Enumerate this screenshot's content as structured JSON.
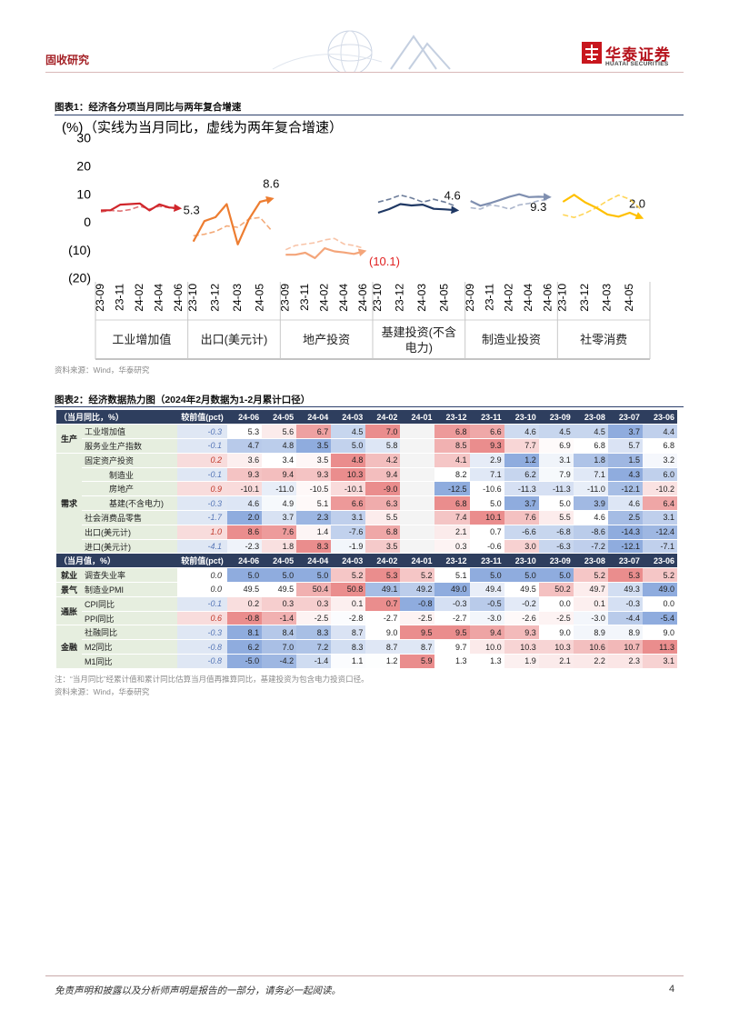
{
  "header": {
    "section": "固收研究",
    "logo_cn": "华泰证券",
    "logo_en": "HUATAI SECURITIES"
  },
  "figure1": {
    "title": "图表1：经济各分项当月同比与两年复合增速",
    "source": "资料来源：Wind，华泰研究"
  },
  "chart_data": {
    "type": "line",
    "y_label": "(%)",
    "subtitle": "（实线为当月同比，虚线为两年复合增速）",
    "ylim": [
      -20,
      30
    ],
    "yticks": [
      30,
      20,
      10,
      0,
      {
        "value": -10,
        "label": "(10)"
      },
      {
        "value": -20,
        "label": "(20)"
      }
    ],
    "panels": [
      {
        "name": "工业增加值",
        "color": "#d0262b",
        "x": [
          "23-09",
          null,
          "23-11",
          null,
          "24-02",
          null,
          "24-04",
          null,
          "24-06"
        ],
        "series": [
          {
            "style": "solid",
            "values": [
              4.5,
              4.6,
              6.6,
              6.8,
              7.0,
              4.5,
              6.7,
              5.6,
              5.3
            ],
            "value_labels": [
              null,
              null,
              null,
              null,
              null,
              null,
              null,
              null,
              "5.3"
            ]
          },
          {
            "style": "dashed",
            "values": [
              4.0,
              4.5,
              4.3,
              4.8,
              6.0,
              5.0,
              6.0,
              5.5,
              5.0
            ]
          }
        ]
      },
      {
        "name": "出口(美元计)",
        "color": "#ed7d31",
        "x": [
          "23-10",
          null,
          "23-12",
          null,
          "24-03",
          null,
          "24-05",
          null
        ],
        "series": [
          {
            "style": "solid",
            "values": [
              -6.6,
              0.7,
              2.1,
              6.8,
              -7.6,
              1.4,
              7.6,
              8.6
            ],
            "value_labels": [
              null,
              null,
              null,
              null,
              null,
              null,
              null,
              "8.6"
            ]
          },
          {
            "style": "dashed",
            "values": [
              -4.5,
              -4.0,
              -3.0,
              -1.0,
              -1.5,
              1.5,
              2.0,
              -2.5
            ]
          }
        ]
      },
      {
        "name": "地产投资",
        "color": "#f4a57a",
        "x": [
          "23-09",
          null,
          "23-11",
          null,
          "24-02",
          null,
          "24-04",
          null,
          "24-06"
        ],
        "series": [
          {
            "style": "solid",
            "values": [
              -11.3,
              -11.3,
              -10.6,
              -12.5,
              -9.0,
              -10.1,
              -10.5,
              -11.0,
              -10.1
            ],
            "value_labels": [
              null,
              null,
              null,
              null,
              null,
              null,
              null,
              null,
              "(10.1)"
            ],
            "value_label_color": "#e02020"
          },
          {
            "style": "dashed",
            "values": [
              -9.5,
              -8.0,
              -7.5,
              -7.0,
              -6.0,
              -5.5,
              -7.5,
              -8.0,
              -9.0
            ]
          }
        ]
      },
      {
        "name": "基建投资(不含电力)",
        "color": "#1f3864",
        "x": [
          "23-10",
          null,
          "23-12",
          null,
          "24-03",
          null,
          "24-05",
          null
        ],
        "series": [
          {
            "style": "solid",
            "values": [
              3.7,
              5.0,
              6.8,
              6.3,
              6.6,
              5.1,
              4.9,
              4.6
            ],
            "value_labels": [
              null,
              null,
              null,
              null,
              null,
              null,
              null,
              "4.6"
            ]
          },
          {
            "style": "dashed",
            "values": [
              7.5,
              8.5,
              10.0,
              9.0,
              7.5,
              8.5,
              7.5,
              6.0
            ]
          }
        ]
      },
      {
        "name": "制造业投资",
        "color": "#7f8fb0",
        "x": [
          "23-09",
          null,
          "23-11",
          null,
          "24-02",
          null,
          "24-04",
          null,
          "24-06"
        ],
        "series": [
          {
            "style": "solid",
            "values": [
              7.9,
              6.2,
              7.1,
              8.2,
              9.4,
              10.3,
              9.3,
              9.4,
              9.3
            ],
            "value_labels": [
              null,
              null,
              null,
              null,
              null,
              null,
              null,
              null,
              "9.3"
            ]
          },
          {
            "style": "dashed",
            "values": [
              5.5,
              5.0,
              6.5,
              6.0,
              5.0,
              6.5,
              7.0,
              8.0,
              8.5
            ]
          }
        ]
      },
      {
        "name": "社零消费",
        "color": "#ffc000",
        "x": [
          "23-10",
          null,
          "23-12",
          null,
          "24-03",
          null,
          "24-05",
          null
        ],
        "series": [
          {
            "style": "solid",
            "values": [
              7.6,
              10.1,
              7.4,
              5.5,
              3.1,
              2.3,
              3.7,
              2.0
            ],
            "value_labels": [
              null,
              null,
              null,
              null,
              null,
              null,
              null,
              "2.0"
            ]
          },
          {
            "style": "dashed",
            "values": [
              3.0,
              2.0,
              3.5,
              5.5,
              8.0,
              10.0,
              8.5,
              5.0
            ]
          }
        ]
      }
    ]
  },
  "figure2": {
    "title": "图表2：经济数据热力图（2024年2月数据为1-2月累计口径）",
    "table": {
      "sections": [
        {
          "header": [
            "（当月同比，%）",
            "较前值(pct)",
            "24-06",
            "24-05",
            "24-04",
            "24-03",
            "24-02",
            "24-01",
            "23-12",
            "23-11",
            "23-10",
            "23-09",
            "23-08",
            "23-07",
            "23-06"
          ],
          "groups": [
            {
              "label": "生产",
              "rows": [
                {
                  "label": "工业增加值",
                  "change": "-0.3",
                  "values": [
                    "5.3",
                    "5.6",
                    "6.7",
                    "4.5",
                    "7.0",
                    null,
                    "6.8",
                    "6.6",
                    "4.6",
                    "4.5",
                    "4.5",
                    "3.7",
                    "4.4"
                  ]
                },
                {
                  "label": "服务业生产指数",
                  "change": "-0.1",
                  "values": [
                    "4.7",
                    "4.8",
                    "3.5",
                    "5.0",
                    "5.8",
                    null,
                    "8.5",
                    "9.3",
                    "7.7",
                    "6.9",
                    "6.8",
                    "5.7",
                    "6.8"
                  ]
                }
              ]
            },
            {
              "label": "需求",
              "rows": [
                {
                  "label": "固定资产投资",
                  "change": "0.2",
                  "values": [
                    "3.6",
                    "3.4",
                    "3.5",
                    "4.8",
                    "4.2",
                    null,
                    "4.1",
                    "2.9",
                    "1.2",
                    "3.1",
                    "1.8",
                    "1.5",
                    "3.2"
                  ]
                },
                {
                  "label": "制造业",
                  "change": "-0.1",
                  "values": [
                    "9.3",
                    "9.4",
                    "9.3",
                    "10.3",
                    "9.4",
                    null,
                    "8.2",
                    "7.1",
                    "6.2",
                    "7.9",
                    "7.1",
                    "4.3",
                    "6.0"
                  ]
                },
                {
                  "label": "房地产",
                  "change": "0.9",
                  "values": [
                    "-10.1",
                    "-11.0",
                    "-10.5",
                    "-10.1",
                    "-9.0",
                    null,
                    "-12.5",
                    "-10.6",
                    "-11.3",
                    "-11.3",
                    "-11.0",
                    "-12.1",
                    "-10.2"
                  ]
                },
                {
                  "label": "基建(不含电力)",
                  "change": "-0.3",
                  "values": [
                    "4.6",
                    "4.9",
                    "5.1",
                    "6.6",
                    "6.3",
                    null,
                    "6.8",
                    "5.0",
                    "3.7",
                    "5.0",
                    "3.9",
                    "4.6",
                    "6.4"
                  ]
                },
                {
                  "label": "社会消费品零售",
                  "change": "-1.7",
                  "values": [
                    "2.0",
                    "3.7",
                    "2.3",
                    "3.1",
                    "5.5",
                    null,
                    "7.4",
                    "10.1",
                    "7.6",
                    "5.5",
                    "4.6",
                    "2.5",
                    "3.1"
                  ]
                },
                {
                  "label": "出口(美元计)",
                  "change": "1.0",
                  "values": [
                    "8.6",
                    "7.6",
                    "1.4",
                    "-7.6",
                    "6.8",
                    null,
                    "2.1",
                    "0.7",
                    "-6.6",
                    "-6.8",
                    "-8.6",
                    "-14.3",
                    "-12.4"
                  ]
                },
                {
                  "label": "进口(美元计)",
                  "change": "-4.1",
                  "values": [
                    "-2.3",
                    "1.8",
                    "8.3",
                    "-1.9",
                    "3.5",
                    null,
                    "0.3",
                    "-0.6",
                    "3.0",
                    "-6.3",
                    "-7.2",
                    "-12.1",
                    "-7.1"
                  ]
                }
              ]
            }
          ]
        },
        {
          "header": [
            "（当月值，%）",
            "较前值(pct)",
            "24-06",
            "24-05",
            "24-04",
            "24-03",
            "24-02",
            "24-01",
            "23-12",
            "23-11",
            "23-10",
            "23-09",
            "23-08",
            "23-07",
            "23-06"
          ],
          "groups": [
            {
              "label": "就业",
              "rows": [
                {
                  "label": "调查失业率",
                  "change": "0.0",
                  "values": [
                    "5.0",
                    "5.0",
                    "5.0",
                    "5.2",
                    "5.3",
                    "5.2",
                    "5.1",
                    "5.0",
                    "5.0",
                    "5.0",
                    "5.2",
                    "5.3",
                    "5.2"
                  ]
                }
              ]
            },
            {
              "label": "景气",
              "rows": [
                {
                  "label": "制造业PMI",
                  "change": "0.0",
                  "values": [
                    "49.5",
                    "49.5",
                    "50.4",
                    "50.8",
                    "49.1",
                    "49.2",
                    "49.0",
                    "49.4",
                    "49.5",
                    "50.2",
                    "49.7",
                    "49.3",
                    "49.0"
                  ]
                }
              ]
            },
            {
              "label": "通胀",
              "rows": [
                {
                  "label": "CPI同比",
                  "change": "-0.1",
                  "values": [
                    "0.2",
                    "0.3",
                    "0.3",
                    "0.1",
                    "0.7",
                    "-0.8",
                    "-0.3",
                    "-0.5",
                    "-0.2",
                    "0.0",
                    "0.1",
                    "-0.3",
                    "0.0"
                  ]
                },
                {
                  "label": "PPI同比",
                  "change": "0.6",
                  "values": [
                    "-0.8",
                    "-1.4",
                    "-2.5",
                    "-2.8",
                    "-2.7",
                    "-2.5",
                    "-2.7",
                    "-3.0",
                    "-2.6",
                    "-2.5",
                    "-3.0",
                    "-4.4",
                    "-5.4"
                  ]
                }
              ]
            },
            {
              "label": "金融",
              "rows": [
                {
                  "label": "社融同比",
                  "change": "-0.3",
                  "values": [
                    "8.1",
                    "8.4",
                    "8.3",
                    "8.7",
                    "9.0",
                    "9.5",
                    "9.5",
                    "9.4",
                    "9.3",
                    "9.0",
                    "8.9",
                    "8.9",
                    "9.0"
                  ]
                },
                {
                  "label": "M2同比",
                  "change": "-0.8",
                  "values": [
                    "6.2",
                    "7.0",
                    "7.2",
                    "8.3",
                    "8.7",
                    "8.7",
                    "9.7",
                    "10.0",
                    "10.3",
                    "10.3",
                    "10.6",
                    "10.7",
                    "11.3"
                  ]
                },
                {
                  "label": "M1同比",
                  "change": "-0.8",
                  "values": [
                    "-5.0",
                    "-4.2",
                    "-1.4",
                    "1.1",
                    "1.2",
                    "5.9",
                    "1.3",
                    "1.3",
                    "1.9",
                    "2.1",
                    "2.2",
                    "2.3",
                    "3.1"
                  ]
                }
              ]
            }
          ]
        }
      ]
    },
    "note": "注：“当月同比”经累计值和累计同比估算当月值再推算同比，基建投资为包含电力投资口径。",
    "source": "资料来源：Wind，华泰研究"
  },
  "footer": {
    "disclaimer": "免责声明和披露以及分析师声明是报告的一部分，请务必一起阅读。",
    "page": 4
  }
}
